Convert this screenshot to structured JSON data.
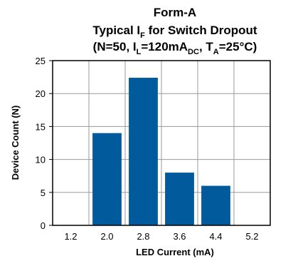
{
  "chart_data": {
    "type": "bar",
    "title": {
      "line1": "Form-A",
      "line2": {
        "pre": "Typical I",
        "sub": "F",
        "post": " for Switch Dropout"
      },
      "line3": {
        "a": "(N=50, I",
        "a_sub": "L",
        "b": "=120mA",
        "b_sub": "DC",
        "c": ", T",
        "c_sub": "A",
        "d": "=25°C)"
      }
    },
    "xlabel": "LED Current (mA)",
    "ylabel": "Device Count (N)",
    "categories": [
      "1.2",
      "2.0",
      "2.8",
      "3.6",
      "4.4",
      "5.2"
    ],
    "values": [
      0,
      14,
      22.4,
      8,
      6,
      0
    ],
    "ylim": [
      0,
      25
    ],
    "yticks": [
      "0",
      "5",
      "10",
      "15",
      "20",
      "25"
    ],
    "grid": true,
    "bar_color": "#005a9c"
  }
}
